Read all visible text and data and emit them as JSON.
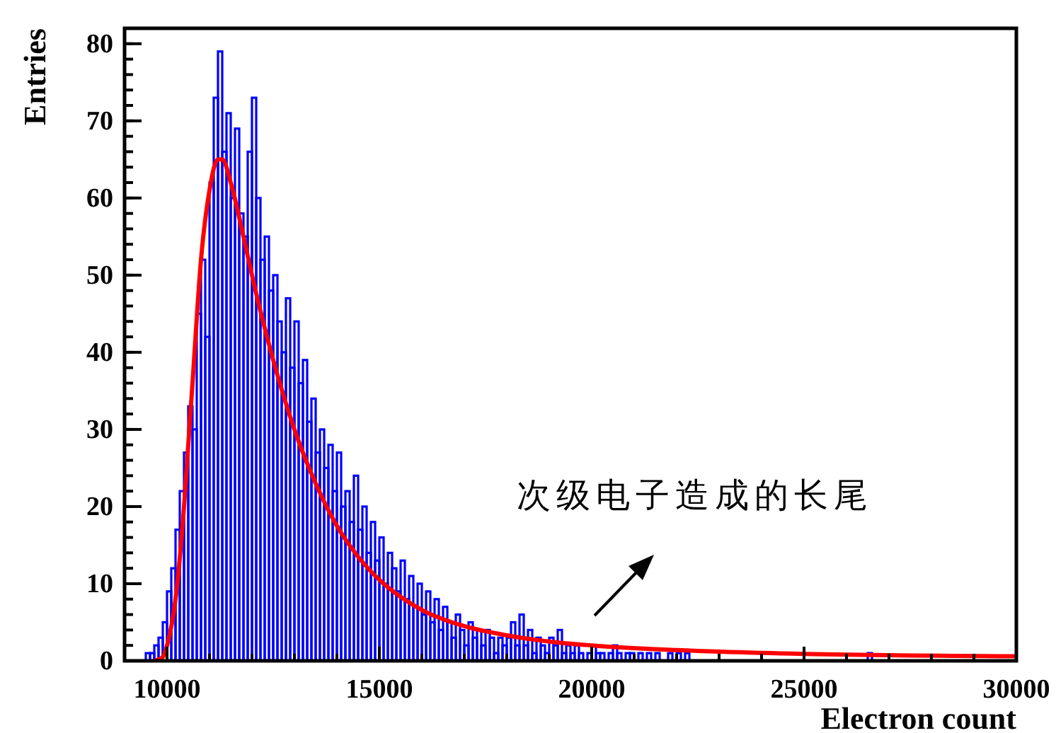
{
  "chart_data": {
    "type": "histogram",
    "xlabel": "Electron count",
    "ylabel": "Entries",
    "xlim": [
      9000,
      30000
    ],
    "ylim": [
      0,
      82
    ],
    "xticks": [
      10000,
      15000,
      20000,
      25000,
      30000
    ],
    "yticks": [
      0,
      10,
      20,
      30,
      40,
      50,
      60,
      70,
      80
    ],
    "annotations": [
      "次级电子造成的长尾"
    ],
    "bins": [
      9500,
      9600,
      9700,
      9800,
      9900,
      10000,
      10100,
      10200,
      10300,
      10400,
      10500,
      10600,
      10700,
      10800,
      10900,
      11000,
      11100,
      11200,
      11300,
      11400,
      11500,
      11600,
      11700,
      11800,
      11900,
      12000,
      12100,
      12200,
      12300,
      12400,
      12500,
      12600,
      12700,
      12800,
      12900,
      13000,
      13100,
      13200,
      13300,
      13400,
      13500,
      13600,
      13700,
      13800,
      13900,
      14000,
      14100,
      14200,
      14300,
      14400,
      14500,
      14600,
      14700,
      14800,
      14900,
      15000,
      15100,
      15200,
      15300,
      15400,
      15500,
      15600,
      15700,
      15800,
      15900,
      16000,
      16100,
      16200,
      16300,
      16400,
      16500,
      16600,
      16700,
      16800,
      16900,
      17000,
      17100,
      17200,
      17300,
      17400,
      17500,
      17600,
      17700,
      17800,
      17900,
      18000,
      18100,
      18200,
      18300,
      18400,
      18500,
      18600,
      18700,
      18800,
      18900,
      19000,
      19100,
      19200,
      19300,
      19400,
      19500,
      19600,
      19700,
      19800,
      19900,
      20000,
      20100,
      20200,
      20300,
      20400,
      20500,
      20600,
      20700,
      20800,
      20900,
      21000,
      21100,
      21200,
      21300,
      21400,
      21500,
      21600,
      21700,
      21800,
      21900,
      22000,
      22100,
      22200,
      22300,
      22400,
      22500,
      22600,
      22700,
      22800,
      22900,
      23000,
      23100,
      23200,
      23300,
      23400,
      23500,
      23600,
      23700,
      23800,
      23900,
      24000,
      24100,
      24200,
      24300,
      24400,
      24500,
      24600,
      24700,
      24800,
      24900,
      25000,
      25100,
      25200,
      25300,
      25400,
      25500,
      25600,
      25700,
      25800,
      25900,
      26000,
      26100,
      26200,
      26300,
      26400,
      26500,
      26600,
      26700
    ],
    "values": [
      1,
      1,
      2,
      3,
      5,
      9,
      12,
      17,
      22,
      27,
      33,
      30,
      45,
      52,
      42,
      62,
      73,
      79,
      66,
      71,
      60,
      69,
      58,
      55,
      66,
      73,
      60,
      52,
      55,
      48,
      50,
      44,
      40,
      47,
      38,
      44,
      36,
      39,
      31,
      34,
      27,
      30,
      25,
      28,
      22,
      27,
      20,
      22,
      18,
      24,
      17,
      20,
      14,
      18,
      13,
      16,
      10,
      14,
      12,
      9,
      13,
      8,
      11,
      7,
      10,
      6,
      9,
      5,
      8,
      4,
      7,
      5,
      3,
      6,
      4,
      2,
      5,
      3,
      4,
      2,
      4,
      3,
      1,
      3,
      2,
      3,
      5,
      2,
      6,
      2,
      4,
      1,
      3,
      2,
      1,
      3,
      2,
      4,
      1,
      2,
      1,
      2,
      1,
      0,
      1,
      2,
      1,
      1,
      0,
      1,
      2,
      1,
      0,
      1,
      1,
      0,
      1,
      0,
      1,
      0,
      1,
      0,
      0,
      1,
      0,
      1,
      0,
      1,
      0,
      0,
      0,
      0,
      0,
      0,
      0,
      0,
      0,
      0,
      0,
      0,
      0,
      0,
      0,
      0,
      0,
      0,
      0,
      0,
      0,
      0,
      0,
      0,
      0,
      0,
      0,
      0,
      0,
      0,
      0,
      0,
      0,
      0,
      0,
      0,
      0,
      0,
      0,
      0,
      0,
      0,
      1,
      0
    ],
    "color": "#0000ff",
    "series": [
      {
        "type": "line",
        "color": "#ff0000",
        "x": [
          9700,
          9900,
          10000,
          10200,
          10400,
          10500,
          10600,
          10800,
          11000,
          11200,
          11300,
          11500,
          11800,
          12000,
          12500,
          13000,
          13500,
          14000,
          14500,
          15000,
          15500,
          16000,
          17000,
          18000,
          19000,
          20000,
          22000,
          25000,
          30000
        ],
        "values": [
          0,
          0.5,
          2,
          8,
          20,
          28,
          36,
          52,
          61,
          65,
          65,
          62,
          55,
          50,
          39,
          30,
          23,
          17.5,
          13.5,
          10.5,
          8.3,
          6.6,
          4.5,
          3.3,
          2.5,
          2,
          1.4,
          0.9,
          0.6
        ]
      }
    ]
  }
}
